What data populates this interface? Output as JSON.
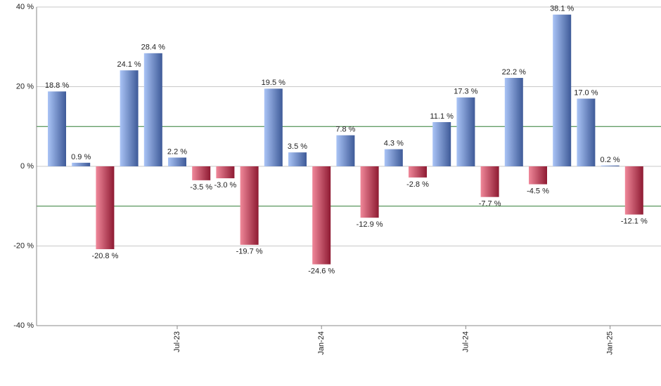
{
  "chart_data": {
    "type": "bar",
    "categories": [
      null,
      null,
      null,
      null,
      null,
      "Jul-23",
      null,
      null,
      null,
      null,
      null,
      "Jan-24",
      null,
      null,
      null,
      null,
      null,
      "Jul-24",
      null,
      null,
      null,
      null,
      null,
      "Jan-25",
      null
    ],
    "values": [
      18.8,
      0.9,
      -20.8,
      24.1,
      28.4,
      2.2,
      -3.5,
      -3.0,
      -19.7,
      19.5,
      3.5,
      -24.6,
      7.8,
      -12.9,
      4.3,
      -2.8,
      11.1,
      17.3,
      -7.7,
      22.2,
      -4.5,
      38.1,
      17.0,
      0.2,
      -12.1
    ],
    "value_labels": [
      "18.8 %",
      "0.9 %",
      "-20.8 %",
      "24.1 %",
      "28.4 %",
      "2.2 %",
      "-3.5 %",
      "-3.0 %",
      "-19.7 %",
      "19.5 %",
      "3.5 %",
      "-24.6 %",
      "7.8 %",
      "-12.9 %",
      "4.3 %",
      "-2.8 %",
      "11.1 %",
      "17.3 %",
      "-7.7 %",
      "22.2 %",
      "-4.5 %",
      "38.1 %",
      "17.0 %",
      "0.2 %",
      "-12.1 %"
    ],
    "positive_colors": [
      "#aac4f6",
      "#3e5a98"
    ],
    "negative_colors": [
      "#f0889a",
      "#8e1a32"
    ],
    "ylim": [
      -40,
      40
    ],
    "yticks": [
      {
        "value": -40,
        "label": "-40 %"
      },
      {
        "value": -20,
        "label": "-20 %"
      },
      {
        "value": 0,
        "label": "0 %"
      },
      {
        "value": 20,
        "label": "20 %"
      },
      {
        "value": 40,
        "label": "40 %"
      }
    ],
    "reference_lines": [
      10,
      -10
    ],
    "reference_color": "#2e7d32",
    "grid": true
  }
}
